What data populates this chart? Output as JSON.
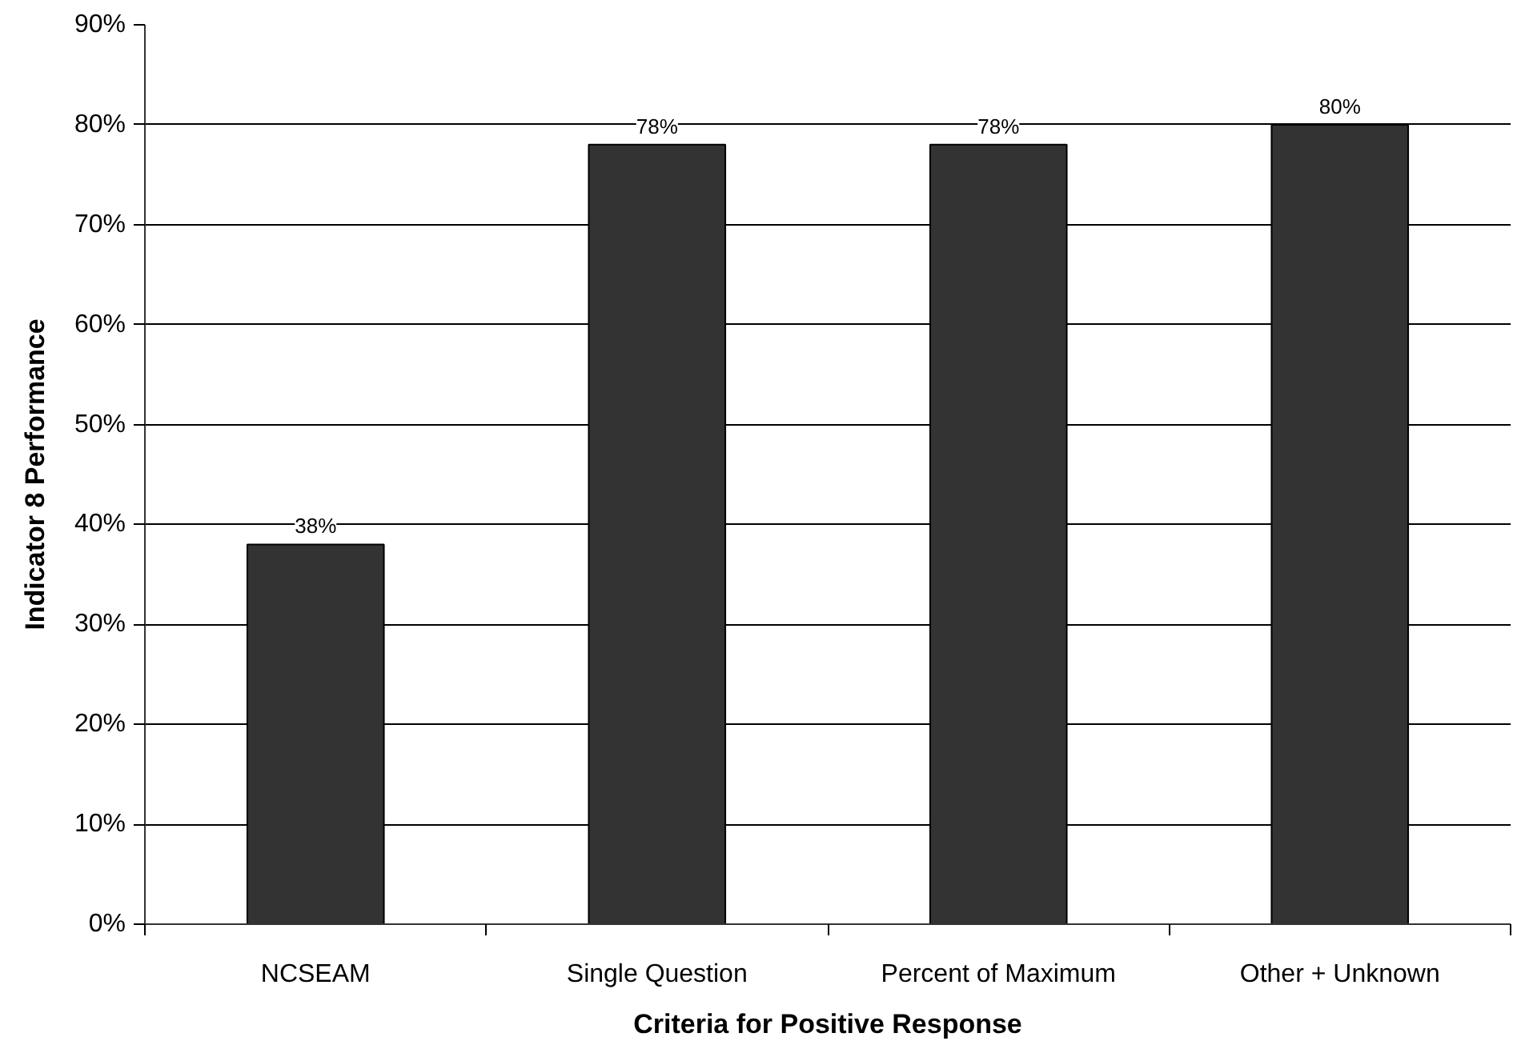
{
  "chart_data": {
    "type": "bar",
    "xlabel": "Criteria for Positive Response",
    "ylabel": "Indicator 8 Performance",
    "categories": [
      "NCSEAM",
      "Single Question",
      "Percent of Maximum",
      "Other + Unknown"
    ],
    "values": [
      38,
      78,
      78,
      80
    ],
    "color": "#333333",
    "value_labels": [
      "38%",
      "78%",
      "78%",
      "80%"
    ],
    "ylim": [
      0,
      90
    ],
    "yticks": [
      {
        "value": 0,
        "label": "0%"
      },
      {
        "value": 10,
        "label": "10%"
      },
      {
        "value": 20,
        "label": "20%"
      },
      {
        "value": 30,
        "label": "30%"
      },
      {
        "value": 40,
        "label": "40%"
      },
      {
        "value": 50,
        "label": "50%"
      },
      {
        "value": 60,
        "label": "60%"
      },
      {
        "value": 70,
        "label": "70%"
      },
      {
        "value": 80,
        "label": "80%"
      },
      {
        "value": 90,
        "label": "90%"
      }
    ],
    "grid": "y"
  }
}
